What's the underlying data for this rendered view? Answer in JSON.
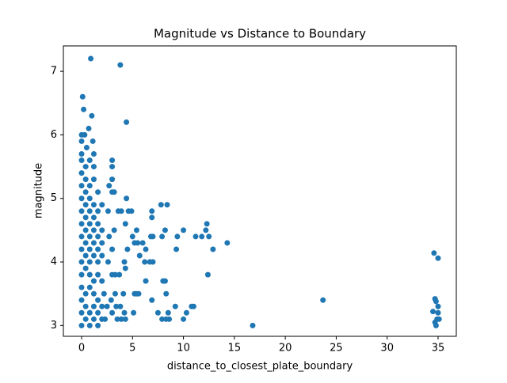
{
  "chart_data": {
    "type": "scatter",
    "title": "Magnitude vs Distance to Boundary",
    "x_label": "distance_to_closest_plate_boundary",
    "y_label": "magnitude",
    "color": "#1f77b4",
    "xlim": [
      -1.79,
      36.79
    ],
    "ylim": [
      2.83,
      7.4
    ],
    "xticks": [
      0,
      5,
      10,
      15,
      20,
      25,
      30,
      35
    ],
    "yticks": [
      3,
      4,
      5,
      6,
      7
    ],
    "x": [
      0.9,
      3.8,
      0.1,
      0.2,
      1.0,
      4.4,
      0.7,
      0.0,
      0.3,
      1.1,
      0.0,
      0.5,
      1.2,
      0.0,
      14.3,
      16.8,
      23.7,
      34.6,
      35.0,
      34.7,
      34.8,
      35.0,
      34.5,
      35.1,
      34.7,
      34.8,
      35.0,
      34.9,
      12.9,
      12.4,
      12.3,
      12.2,
      11.8,
      12.5,
      11.2,
      11.0,
      10.8,
      10.3,
      10.0,
      10.0,
      9.4,
      9.3,
      9.2,
      8.5,
      8.6,
      8.2,
      7.9,
      8.4,
      7.8,
      8.2,
      8.3,
      8.0,
      7.9,
      8.3,
      7.5,
      6.9,
      7.0,
      6.7,
      6.8,
      7.0,
      6.9,
      6.9,
      6.3,
      6.3,
      6.0,
      6.2,
      5.6,
      5.2,
      5.4,
      5.1,
      5.4,
      5.5,
      5.0,
      5.2,
      5.7,
      4.9,
      4.6,
      4.4,
      4.3,
      4.5,
      4.2,
      4.3,
      4.1,
      4.2,
      4.3,
      3.9,
      3.5,
      3.8,
      3.4,
      3.0,
      3.3,
      3.7,
      3.3,
      3.0,
      3.0,
      3.2,
      3.6,
      3.9,
      3.0,
      3.2,
      3.0,
      3.0,
      3.0,
      2.7,
      2.6,
      2.7,
      2.6,
      2.9,
      2.5,
      2.2,
      2.3,
      0,
      0,
      0,
      0,
      0,
      0,
      0,
      0,
      0,
      0,
      0,
      0,
      0,
      0,
      0.4,
      0.4,
      0.4,
      0.4,
      0.4,
      0.4,
      0.4,
      0.4,
      0.4,
      0.4,
      0.4,
      0.4,
      0.8,
      0.8,
      0.8,
      0.8,
      0.8,
      0.8,
      0.8,
      0.8,
      0.8,
      0.8,
      0.8,
      0.8,
      1.2,
      1.2,
      1.2,
      1.2,
      1.2,
      1.2,
      1.2,
      1.2,
      1.2,
      1.2,
      1.2,
      1.6,
      1.6,
      1.6,
      1.6,
      1.6,
      1.6,
      1.6,
      1.6,
      1.6,
      1.6,
      2.0,
      2.0,
      2.0,
      2.0,
      2.0,
      2.0,
      2.0
    ],
    "values": [
      7.2,
      7.1,
      6.6,
      6.4,
      6.3,
      6.2,
      6.1,
      6.0,
      6.0,
      5.9,
      5.9,
      5.8,
      5.7,
      5.7,
      4.3,
      3.0,
      3.4,
      4.14,
      4.06,
      3.42,
      3.38,
      3.3,
      3.22,
      3.1,
      3.05,
      3.0,
      3.2,
      3.1,
      4.2,
      3.8,
      4.6,
      4.5,
      4.4,
      4.4,
      4.4,
      3.3,
      3.3,
      3.2,
      3.1,
      4.5,
      4.4,
      4.2,
      3.3,
      3.2,
      3.1,
      4.5,
      4.4,
      4.9,
      4.9,
      3.7,
      3.5,
      3.7,
      3.1,
      3.1,
      3.2,
      3.4,
      4.0,
      4.0,
      4.4,
      4.4,
      4.7,
      4.8,
      3.7,
      4.2,
      4.3,
      4.0,
      3.5,
      3.5,
      3.5,
      3.2,
      4.5,
      4.3,
      4.4,
      4.3,
      4.1,
      4.8,
      4.8,
      5.0,
      4.6,
      4.2,
      4.0,
      3.9,
      3.5,
      3.2,
      3.1,
      3.1,
      3.1,
      3.3,
      3.3,
      3.2,
      3.5,
      3.8,
      3.8,
      3.8,
      4.2,
      4.5,
      4.8,
      4.8,
      5.1,
      5.1,
      5.3,
      5.5,
      5.6,
      5.2,
      4.8,
      4.4,
      4.0,
      3.4,
      3.3,
      3.5,
      3.1,
      3.0,
      3.2,
      3.4,
      3.6,
      3.8,
      4.0,
      4.2,
      4.4,
      4.6,
      4.8,
      5.0,
      5.2,
      5.4,
      5.6,
      3.1,
      3.3,
      3.5,
      3.9,
      4.1,
      4.3,
      4.5,
      4.7,
      4.9,
      5.1,
      5.3,
      5.5,
      3.0,
      3.2,
      3.6,
      3.8,
      4.0,
      4.2,
      4.4,
      4.6,
      4.8,
      5.0,
      5.2,
      5.6,
      3.1,
      3.3,
      3.5,
      3.7,
      4.1,
      4.3,
      4.5,
      4.7,
      4.9,
      5.3,
      5.5,
      3.0,
      3.2,
      3.4,
      3.8,
      4.0,
      4.2,
      4.4,
      4.6,
      4.8,
      5.1,
      3.1,
      3.3,
      3.7,
      4.1,
      4.3,
      4.5,
      4.9
    ]
  }
}
